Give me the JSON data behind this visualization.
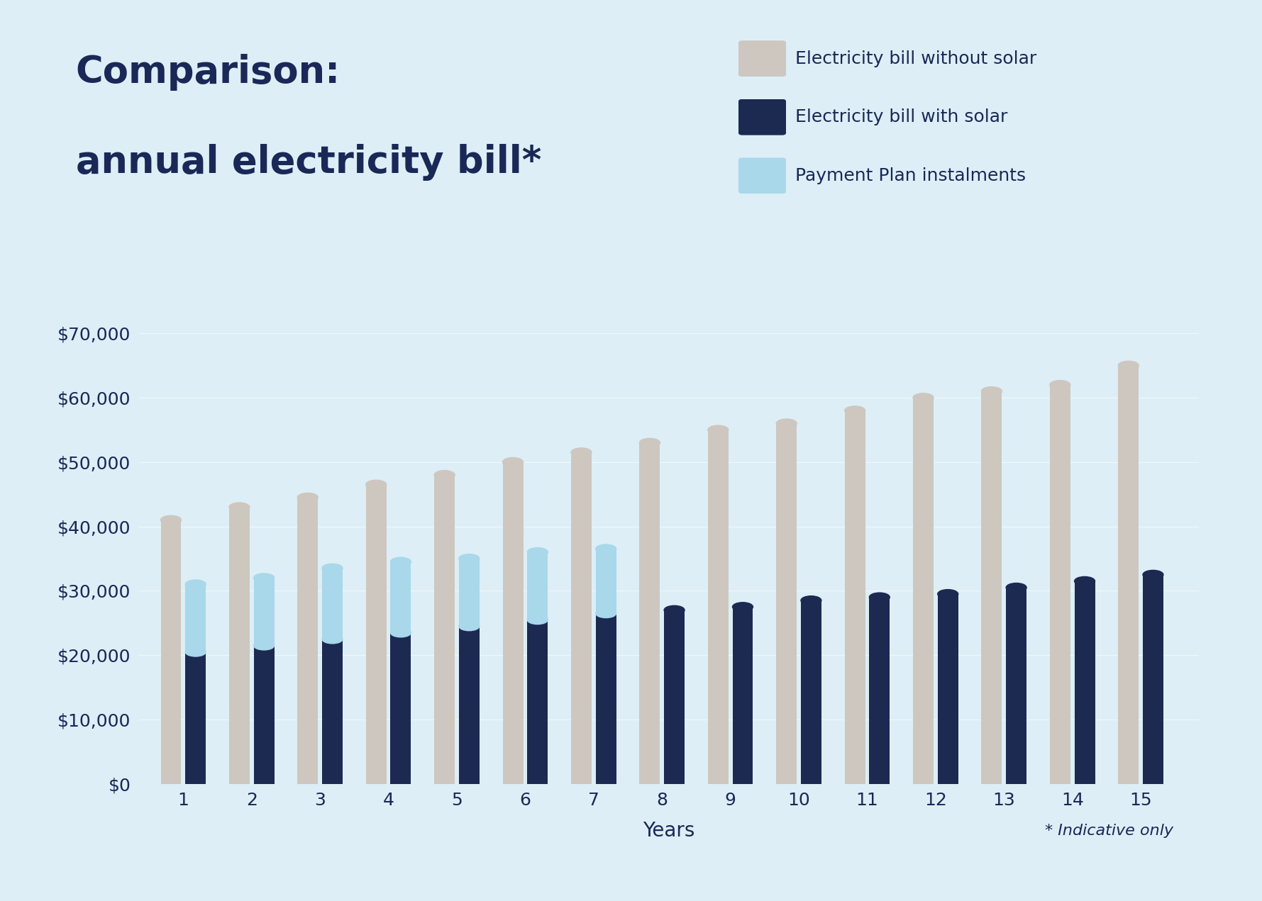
{
  "title_line1": "Comparison:",
  "title_line2": "annual electricity bill*",
  "title_color": "#1a2857",
  "background_color": "#ddeef6",
  "years": [
    1,
    2,
    3,
    4,
    5,
    6,
    7,
    8,
    9,
    10,
    11,
    12,
    13,
    14,
    15
  ],
  "without_solar": [
    41000,
    43000,
    44500,
    46500,
    48000,
    50000,
    51500,
    53000,
    55000,
    56000,
    58000,
    60000,
    61000,
    62000,
    65000
  ],
  "with_solar": [
    20500,
    21500,
    22500,
    23500,
    24500,
    25500,
    26500,
    27000,
    27500,
    28500,
    29000,
    29500,
    30500,
    31500,
    32500
  ],
  "payment_plan_total": [
    31000,
    32000,
    33500,
    34500,
    35000,
    36000,
    36500,
    0,
    0,
    0,
    0,
    0,
    0,
    0,
    0
  ],
  "color_without_solar": "#cdc7c0",
  "color_with_solar": "#1c2951",
  "color_payment_plan": "#a8d8ea",
  "legend_without_solar": "Electricity bill without solar",
  "legend_with_solar": "Electricity bill with solar",
  "legend_payment_plan": "Payment Plan instalments",
  "xlabel": "Years",
  "ylim": [
    0,
    70000
  ],
  "yticks": [
    0,
    10000,
    20000,
    30000,
    40000,
    50000,
    60000,
    70000
  ],
  "ytick_labels": [
    "$0",
    "$10,000",
    "$20,000",
    "$30,000",
    "$40,000",
    "$50,000",
    "$60,000",
    "$70,000"
  ],
  "footnote": "* Indicative only",
  "bar_width": 0.3
}
